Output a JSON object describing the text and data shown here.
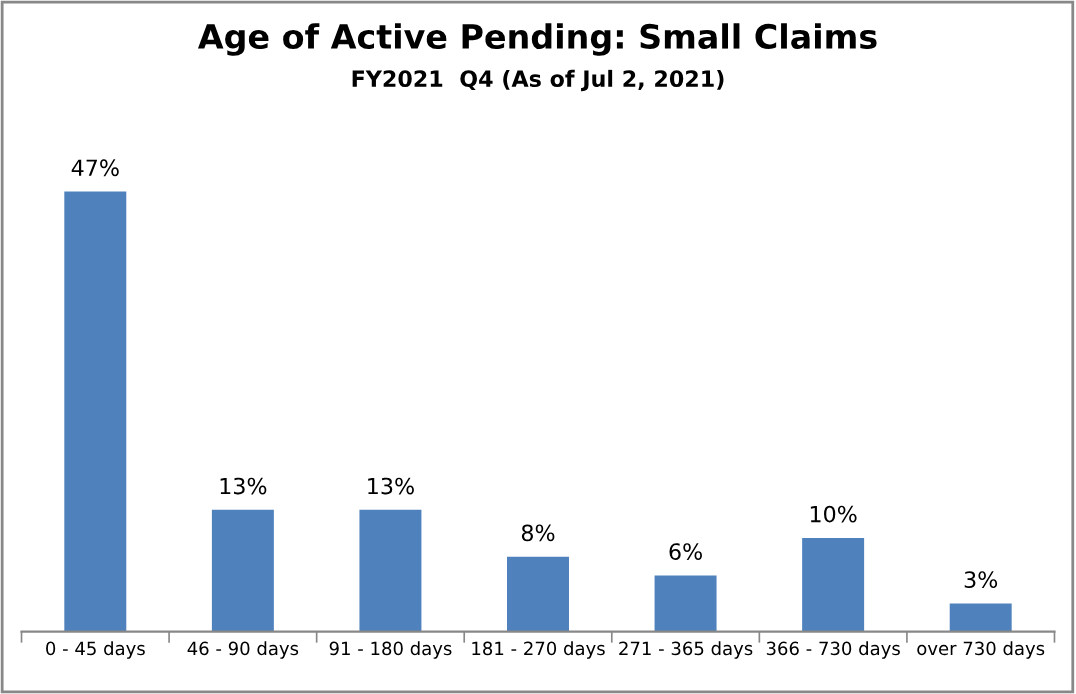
{
  "chart_data": {
    "type": "bar",
    "title": "Age of Active Pending: Small Claims",
    "subtitle": "FY2021  Q4 (As of Jul 2, 2021)",
    "categories": [
      "0 - 45 days",
      "46 - 90 days",
      "91 - 180 days",
      "181 - 270 days",
      "271 - 365 days",
      "366 - 730 days",
      "over 730 days"
    ],
    "values": [
      47,
      13,
      13,
      8,
      6,
      10,
      3
    ],
    "value_labels": [
      "47%",
      "13%",
      "13%",
      "8%",
      "6%",
      "10%",
      "3%"
    ],
    "color": "#4f81bd",
    "grid": false,
    "legend": false
  }
}
